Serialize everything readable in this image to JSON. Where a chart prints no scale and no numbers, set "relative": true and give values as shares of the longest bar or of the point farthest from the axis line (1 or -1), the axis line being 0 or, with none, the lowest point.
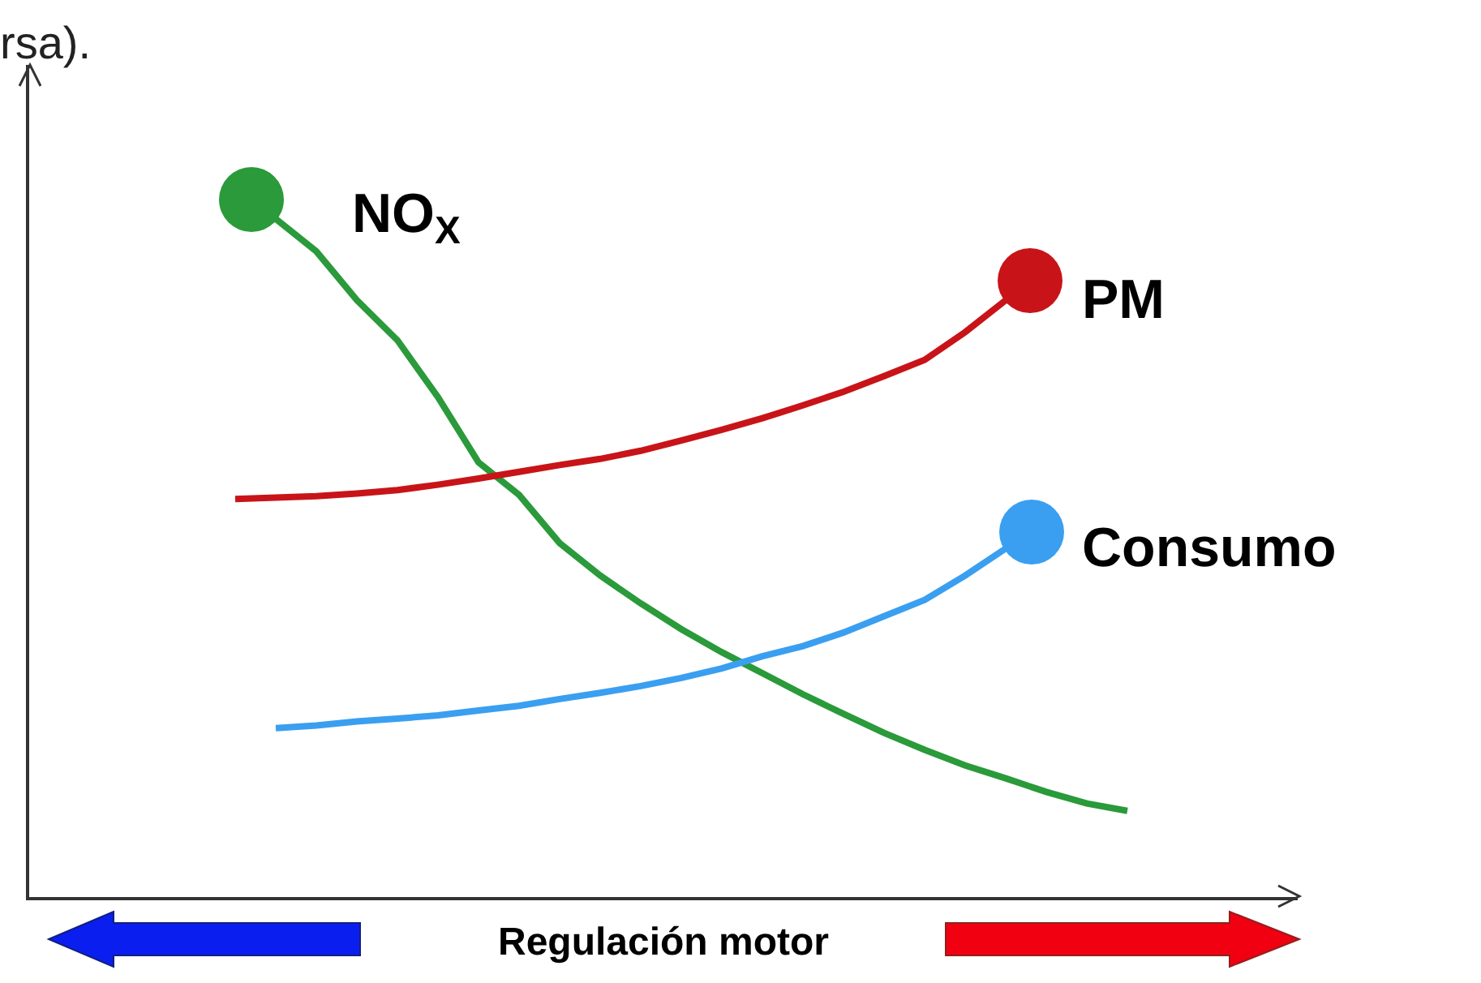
{
  "chart_data": {
    "type": "line",
    "relative": true,
    "xlabel": "Regulación motor",
    "marker": "none",
    "legend": "right",
    "tick_labels": false,
    "annotations": [
      "rsa)."
    ],
    "categories": [
      null,
      null,
      null,
      null,
      null,
      null,
      null,
      null,
      null,
      null,
      null,
      null,
      null,
      null,
      null,
      null,
      null,
      null,
      null,
      null,
      null,
      null,
      null
    ],
    "series": [
      {
        "name": "NO$_{X}$",
        "color": "#2a9a3a",
        "values": [
          null,
          1.0,
          0.952,
          0.88,
          0.821,
          0.737,
          0.641,
          0.593,
          0.522,
          0.474,
          0.433,
          0.395,
          0.361,
          0.33,
          0.299,
          0.27,
          0.242,
          0.217,
          0.194,
          0.175,
          0.155,
          0.138,
          0.127
        ]
      },
      {
        "name": "PM",
        "color": "#c81418",
        "values": [
          0.587,
          0.589,
          0.591,
          0.595,
          0.6,
          0.608,
          0.617,
          0.627,
          0.637,
          0.646,
          0.658,
          0.673,
          0.689,
          0.706,
          0.725,
          0.745,
          0.768,
          0.792,
          0.833,
          0.88,
          null,
          null,
          null
        ]
      },
      {
        "name": "Consumo",
        "color": "#3a9ff0",
        "values": [
          null,
          0.249,
          0.253,
          0.259,
          0.263,
          0.268,
          0.275,
          0.282,
          0.292,
          0.301,
          0.311,
          0.323,
          0.337,
          0.355,
          0.37,
          0.39,
          0.414,
          0.438,
          0.474,
          0.514,
          null,
          null,
          null
        ]
      }
    ]
  }
}
